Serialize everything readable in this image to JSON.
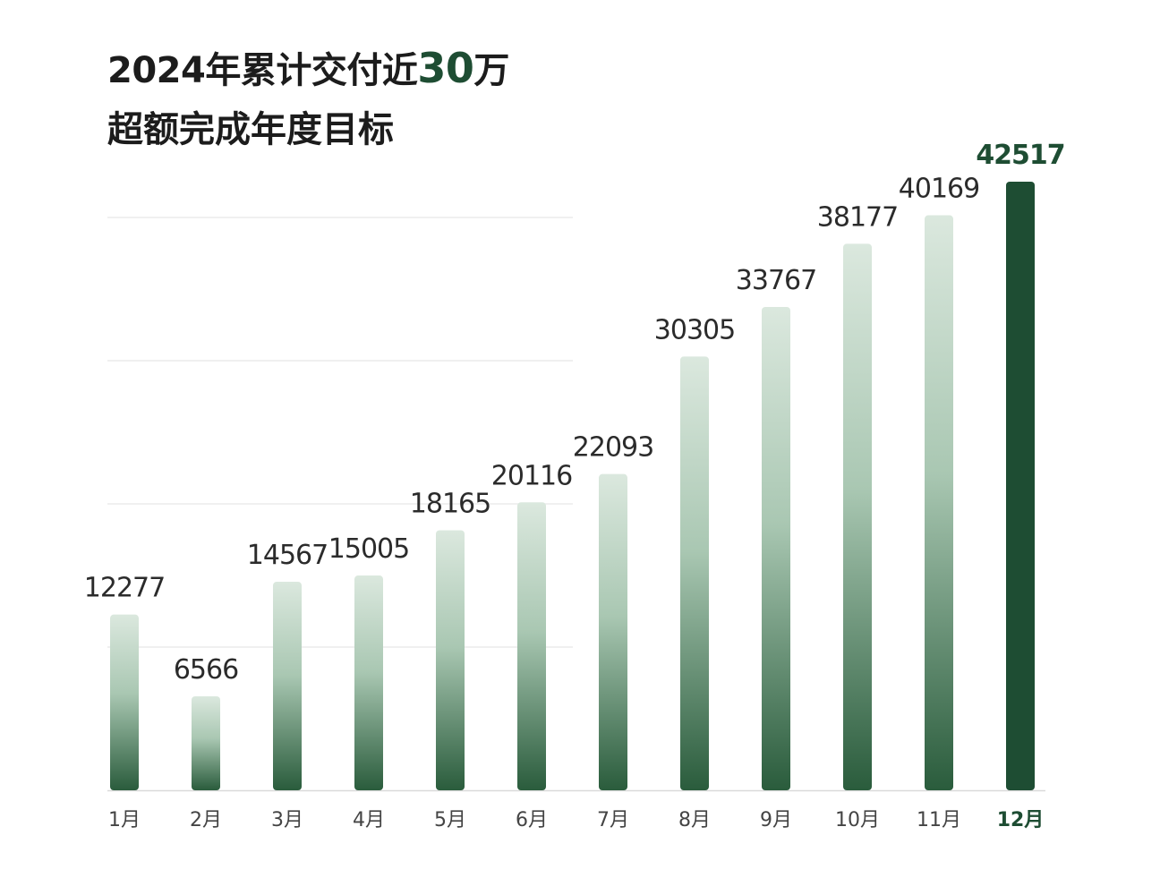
{
  "title": {
    "prefix": "2024年累计交付近",
    "highlight": "30",
    "suffix": "万",
    "subtitle": "超额完成年度目标"
  },
  "colors": {
    "bar_top": "#dbe8de",
    "bar_bottom": "#2a5c3c",
    "highlight_bar": "#1e4d33",
    "highlight_text": "#1e4d33",
    "gridline": "#ececec",
    "baseline": "#d9d9d9"
  },
  "chart_data": {
    "type": "bar",
    "title": "2024年累计交付近30万",
    "subtitle": "超额完成年度目标",
    "categories": [
      "1月",
      "2月",
      "3月",
      "4月",
      "5月",
      "6月",
      "7月",
      "8月",
      "9月",
      "10月",
      "11月",
      "12月"
    ],
    "values": [
      12277,
      6566,
      14567,
      15005,
      18165,
      20116,
      22093,
      30305,
      33767,
      38177,
      40169,
      42517
    ],
    "highlight_index": 11,
    "ylim": [
      0,
      42517
    ],
    "grid": true,
    "legend": "none",
    "xlabel": "",
    "ylabel": ""
  }
}
